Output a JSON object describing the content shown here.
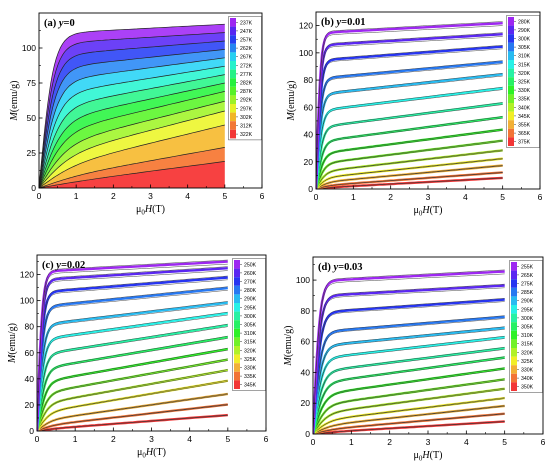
{
  "chart_data": [
    {
      "type": "line",
      "panel": "(a)",
      "title": "(a) y=0",
      "xlabel": "μ0H(T)",
      "ylabel": "M(emu/g)",
      "xlim": [
        0,
        6
      ],
      "ylim": [
        0,
        125
      ],
      "xticks": [
        "0",
        "1",
        "2",
        "3",
        "4",
        "5",
        "6"
      ],
      "yticks": [
        "0",
        "25",
        "50",
        "75",
        "100"
      ],
      "legend_position": "top-right",
      "x": [
        0,
        5
      ],
      "series": [
        {
          "name": "237K",
          "M_at_5T": 117
        },
        {
          "name": "247K",
          "M_at_5T": 111
        },
        {
          "name": "257K",
          "M_at_5T": 105
        },
        {
          "name": "262K",
          "M_at_5T": 99
        },
        {
          "name": "267K",
          "M_at_5T": 93
        },
        {
          "name": "272K",
          "M_at_5T": 87
        },
        {
          "name": "277K",
          "M_at_5T": 81
        },
        {
          "name": "282K",
          "M_at_5T": 75
        },
        {
          "name": "287K",
          "M_at_5T": 69
        },
        {
          "name": "292K",
          "M_at_5T": 62
        },
        {
          "name": "297K",
          "M_at_5T": 55
        },
        {
          "name": "302K",
          "M_at_5T": 45
        },
        {
          "name": "312K",
          "M_at_5T": 29
        },
        {
          "name": "322K",
          "M_at_5T": 19
        }
      ]
    },
    {
      "type": "line",
      "panel": "(b)",
      "title": "(b) y=0.01",
      "xlabel": "μ0H(T)",
      "ylabel": "M(emu/g)",
      "xlim": [
        0,
        6
      ],
      "ylim": [
        0,
        130
      ],
      "xticks": [
        "0",
        "1",
        "2",
        "3",
        "4",
        "5",
        "6"
      ],
      "yticks": [
        "0",
        "20",
        "40",
        "60",
        "80",
        "100",
        "120"
      ],
      "legend_position": "top-right",
      "x": [
        0,
        5
      ],
      "series": [
        {
          "name": "280K",
          "M_at_5T": 120
        },
        {
          "name": "290K",
          "M_at_5T": 112
        },
        {
          "name": "300K",
          "M_at_5T": 103
        },
        {
          "name": "305K",
          "M_at_5T": 92
        },
        {
          "name": "310K",
          "M_at_5T": 83
        },
        {
          "name": "315K",
          "M_at_5T": 73
        },
        {
          "name": "320K",
          "M_at_5T": 62
        },
        {
          "name": "325K",
          "M_at_5T": 52
        },
        {
          "name": "330K",
          "M_at_5T": 43
        },
        {
          "name": "335K",
          "M_at_5T": 35
        },
        {
          "name": "340K",
          "M_at_5T": 28
        },
        {
          "name": "345K",
          "M_at_5T": 22
        },
        {
          "name": "355K",
          "M_at_5T": 17
        },
        {
          "name": "365K",
          "M_at_5T": 12
        },
        {
          "name": "375K",
          "M_at_5T": 8
        }
      ]
    },
    {
      "type": "line",
      "panel": "(c)",
      "title": "(c) y=0.02",
      "xlabel": "μ0H(T)",
      "ylabel": "M(emu/g)",
      "xlim": [
        0,
        6
      ],
      "ylim": [
        0,
        135
      ],
      "xticks": [
        "0",
        "1",
        "2",
        "3",
        "4",
        "5",
        "6"
      ],
      "yticks": [
        "0",
        "20",
        "40",
        "60",
        "80",
        "100",
        "120"
      ],
      "legend_position": "top-right",
      "x": [
        0,
        5
      ],
      "series": [
        {
          "name": "250K",
          "M_at_5T": 128
        },
        {
          "name": "260K",
          "M_at_5T": 123
        },
        {
          "name": "270K",
          "M_at_5T": 116
        },
        {
          "name": "280K",
          "M_at_5T": 108
        },
        {
          "name": "290K",
          "M_at_5T": 97
        },
        {
          "name": "295K",
          "M_at_5T": 89
        },
        {
          "name": "300K",
          "M_at_5T": 80
        },
        {
          "name": "305K",
          "M_at_5T": 71
        },
        {
          "name": "310K",
          "M_at_5T": 62
        },
        {
          "name": "315K",
          "M_at_5T": 54
        },
        {
          "name": "320K",
          "M_at_5T": 46
        },
        {
          "name": "325K",
          "M_at_5T": 38
        },
        {
          "name": "330K",
          "M_at_5T": 28
        },
        {
          "name": "335K",
          "M_at_5T": 20
        },
        {
          "name": "345K",
          "M_at_5T": 12
        }
      ]
    },
    {
      "type": "line",
      "panel": "(d)",
      "title": "(d) y=0.03",
      "xlabel": "μ0H(T)",
      "ylabel": "M(emu/g)",
      "xlim": [
        0,
        6
      ],
      "ylim": [
        0,
        115
      ],
      "xticks": [
        "0",
        "1",
        "2",
        "3",
        "4",
        "5",
        "6"
      ],
      "yticks": [
        "0",
        "20",
        "40",
        "60",
        "80",
        "100"
      ],
      "legend_position": "top-right",
      "x": [
        0,
        5
      ],
      "series": [
        {
          "name": "255K",
          "M_at_5T": 104
        },
        {
          "name": "265K",
          "M_at_5T": 95
        },
        {
          "name": "275K",
          "M_at_5T": 86
        },
        {
          "name": "285K",
          "M_at_5T": 75
        },
        {
          "name": "290K",
          "M_at_5T": 68
        },
        {
          "name": "295K",
          "M_at_5T": 62
        },
        {
          "name": "300K",
          "M_at_5T": 55
        },
        {
          "name": "305K",
          "M_at_5T": 49
        },
        {
          "name": "310K",
          "M_at_5T": 42
        },
        {
          "name": "315K",
          "M_at_5T": 35
        },
        {
          "name": "320K",
          "M_at_5T": 29
        },
        {
          "name": "325K",
          "M_at_5T": 23
        },
        {
          "name": "330K",
          "M_at_5T": 18
        },
        {
          "name": "340K",
          "M_at_5T": 13
        },
        {
          "name": "350K",
          "M_at_5T": 8
        }
      ]
    }
  ]
}
